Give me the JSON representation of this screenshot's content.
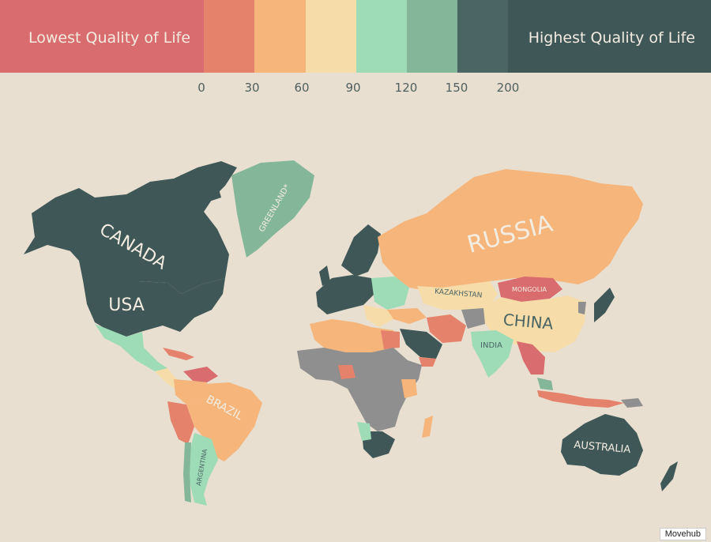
{
  "legend": {
    "low_label": "Lowest Quality of Life",
    "high_label": "Highest Quality of Life",
    "ticks": [
      "0",
      "30",
      "60",
      "90",
      "120",
      "150",
      "200"
    ],
    "colors": {
      "band_0_30": "#e5826b",
      "band_30_60": "#f5b57b",
      "band_60_90": "#f6dca9",
      "band_90_120": "#9ddcb6",
      "band_120_150": "#84b79a",
      "band_150_200": "#4b6464",
      "low_end": "#d96c6e",
      "high_end": "#3f5757",
      "no_data": "#8f8f8f"
    }
  },
  "map": {
    "labels": {
      "canada": "CANADA",
      "usa": "USA",
      "greenland": "GREENLAND*",
      "russia": "RUSSIA",
      "kazakhstan": "KAZAKHSTAN",
      "mongolia": "MONGOLIA",
      "china": "CHINA",
      "india": "INDIA",
      "brazil": "BRAZIL",
      "argentina": "ARGENTINA",
      "australia": "AUSTRALIA"
    }
  },
  "credit": "Movehub"
}
